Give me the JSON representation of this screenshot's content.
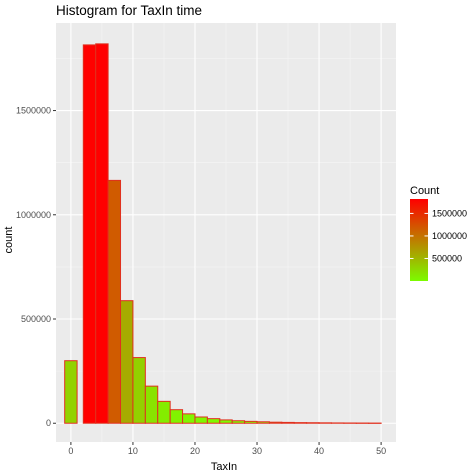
{
  "chart_data": {
    "type": "bar",
    "title": "Histogram for TaxIn time",
    "xlabel": "TaxIn",
    "ylabel": "count",
    "xlim": [
      -2.4,
      52.4
    ],
    "ylim": [
      -90000,
      1920000
    ],
    "x_ticks": [
      0,
      10,
      20,
      30,
      40,
      50
    ],
    "x_tick_labels": [
      "0",
      "10",
      "20",
      "30",
      "40",
      "50"
    ],
    "y_ticks": [
      0,
      500000,
      1000000,
      1500000
    ],
    "y_tick_labels": [
      "0",
      "500000",
      "1000000",
      "1500000"
    ],
    "bin_width": 2,
    "bins": [
      {
        "x": 0,
        "count": 300000
      },
      {
        "x": 3,
        "count": 1815000
      },
      {
        "x": 5,
        "count": 1820000
      },
      {
        "x": 7,
        "count": 1165000
      },
      {
        "x": 9,
        "count": 588000
      },
      {
        "x": 11,
        "count": 315000
      },
      {
        "x": 13,
        "count": 178000
      },
      {
        "x": 15,
        "count": 105000
      },
      {
        "x": 17,
        "count": 65000
      },
      {
        "x": 19,
        "count": 45000
      },
      {
        "x": 21,
        "count": 30000
      },
      {
        "x": 23,
        "count": 22000
      },
      {
        "x": 25,
        "count": 16000
      },
      {
        "x": 27,
        "count": 12000
      },
      {
        "x": 29,
        "count": 9000
      },
      {
        "x": 31,
        "count": 7000
      },
      {
        "x": 33,
        "count": 5000
      },
      {
        "x": 35,
        "count": 4000
      },
      {
        "x": 37,
        "count": 3000
      },
      {
        "x": 39,
        "count": 2500
      },
      {
        "x": 41,
        "count": 2000
      },
      {
        "x": 43,
        "count": 1500
      },
      {
        "x": 45,
        "count": 1200
      },
      {
        "x": 47,
        "count": 1000
      },
      {
        "x": 49,
        "count": 800
      }
    ],
    "fill_gradient": {
      "low": "#7cfc00",
      "high": "#ff0000",
      "range": [
        0,
        1820000
      ]
    },
    "bar_outline": "#e0301e",
    "panel_background": "#ebebeb",
    "grid": true,
    "legend": {
      "title": "Count",
      "position": "right",
      "breaks": [
        500000,
        1000000,
        1500000
      ],
      "labels": [
        "500000",
        "1000000",
        "1500000"
      ]
    }
  }
}
